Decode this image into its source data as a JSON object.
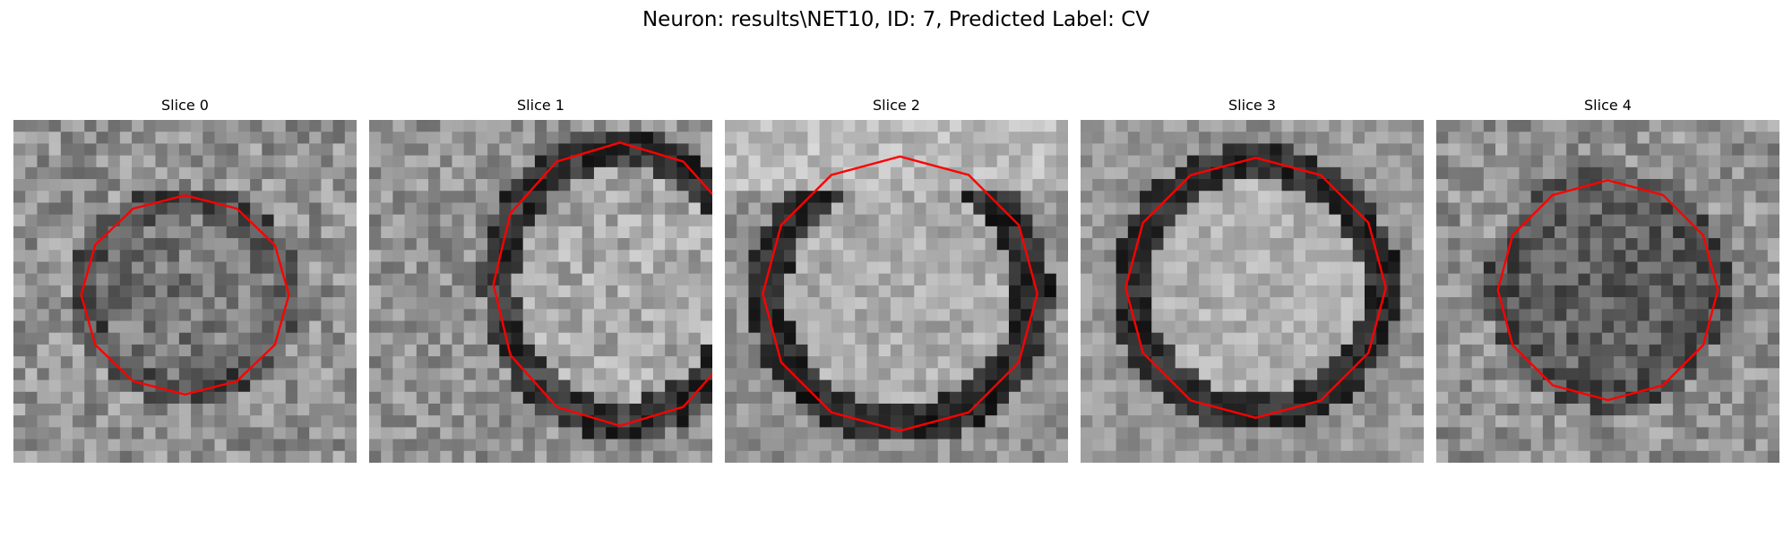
{
  "figure": {
    "title": "Neuron: results\\NET10, ID: 7, Predicted Label: CV",
    "colormap": "gray",
    "outline_color": "#ff0000"
  },
  "panels": [
    {
      "title": "Slice 0"
    },
    {
      "title": "Slice 1"
    },
    {
      "title": "Slice 2"
    },
    {
      "title": "Slice 3"
    },
    {
      "title": "Slice 4"
    }
  ]
}
